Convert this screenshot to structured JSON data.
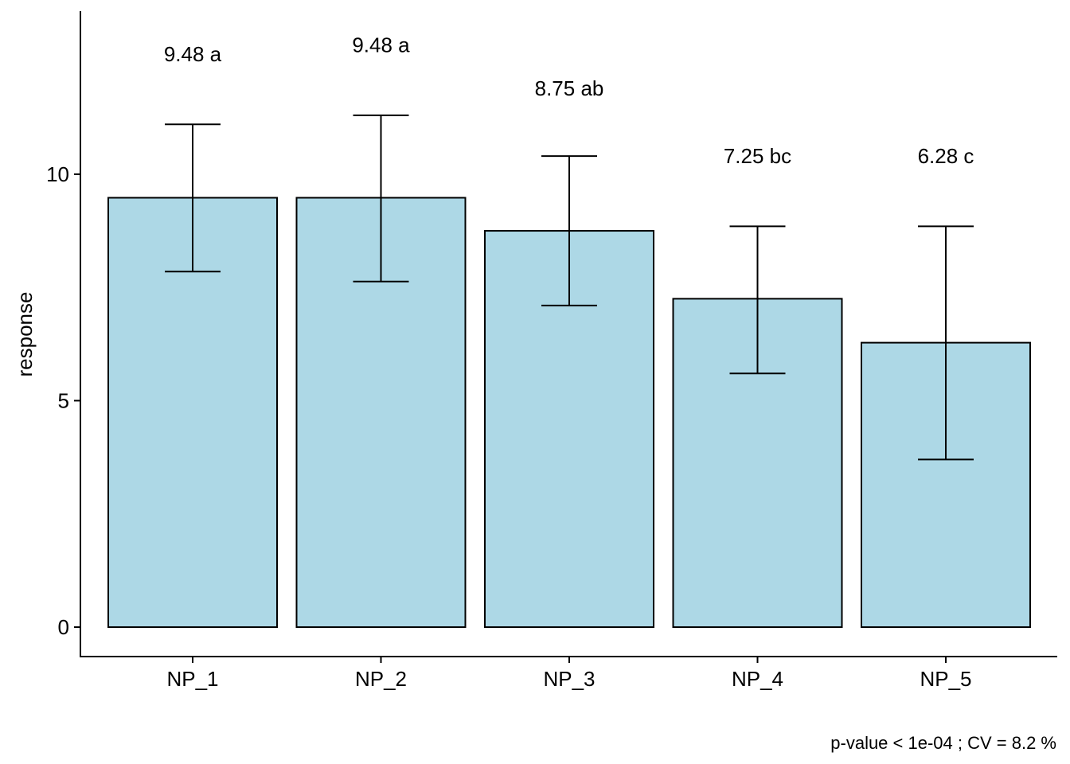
{
  "chart_data": {
    "type": "bar",
    "categories": [
      "NP_1",
      "NP_2",
      "NP_3",
      "NP_4",
      "NP_5"
    ],
    "values": [
      9.48,
      9.48,
      8.75,
      7.25,
      6.28
    ],
    "error_low": [
      7.85,
      7.63,
      7.1,
      5.6,
      3.7
    ],
    "error_high": [
      11.1,
      11.3,
      10.4,
      8.85,
      8.85
    ],
    "labels": [
      "9.48 a",
      "9.48 a",
      "8.75 ab",
      "7.25 bc",
      "6.28 c"
    ],
    "label_y": [
      12.65,
      12.85,
      11.9,
      10.4,
      10.4
    ],
    "ylabel": "response",
    "xlabel": "",
    "yticks": [
      0,
      5,
      10
    ],
    "ylim": [
      -0.65,
      13.6
    ],
    "bar_fill": "#add8e6",
    "bar_stroke": "#000000",
    "caption": "p-value < 1e-04 ; CV =  8.2 %"
  }
}
